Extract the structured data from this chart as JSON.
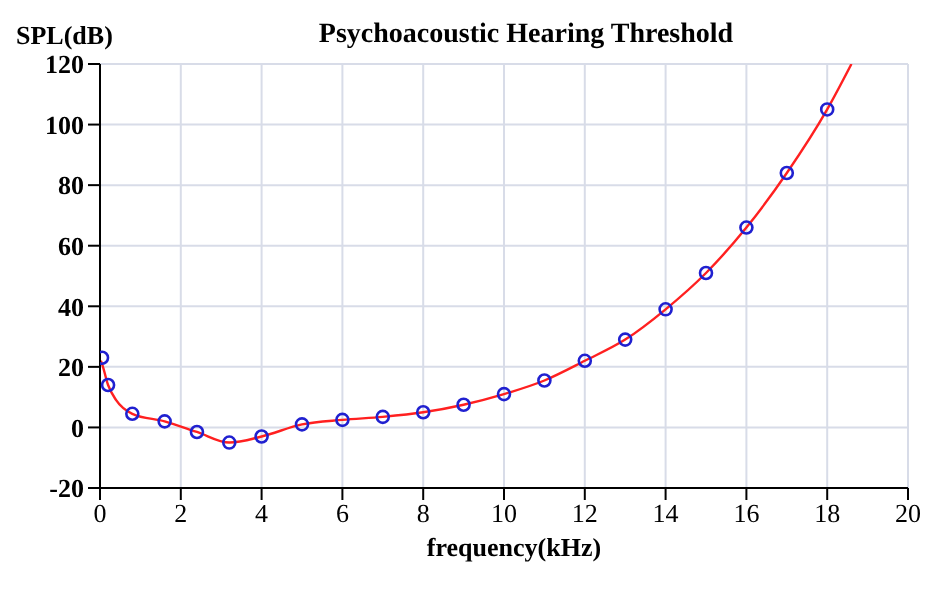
{
  "chart_data": {
    "type": "line",
    "title": "Psychoacoustic Hearing Threshold",
    "xlabel": "frequency(kHz)",
    "ylabel": "SPL(dB)",
    "xlim": [
      0,
      20
    ],
    "xticks": [
      0,
      2,
      4,
      6,
      8,
      10,
      12,
      14,
      16,
      18,
      20
    ],
    "ylim": [
      -20,
      120
    ],
    "yticks": [
      -20,
      0,
      20,
      40,
      60,
      80,
      100,
      120
    ],
    "grid": true,
    "series": [
      {
        "color": "#ff2020",
        "marker": "none",
        "x": [
          0.02,
          0.05,
          0.2,
          0.4,
          0.8,
          1.6,
          2.4,
          3.2,
          4,
          5,
          6,
          7,
          8,
          9,
          10,
          11,
          12,
          13,
          14,
          15,
          16,
          17,
          18,
          18.6
        ],
        "values": [
          22,
          21,
          14,
          9,
          4.5,
          2,
          -1.5,
          -5,
          -3,
          1,
          2.5,
          3.5,
          5,
          7.5,
          11,
          15.5,
          22,
          29,
          39,
          51,
          66,
          84,
          105,
          120
        ]
      },
      {
        "type": "scatter",
        "color": "#2020d0",
        "marker": "circle",
        "x": [
          0.05,
          0.2,
          0.8,
          1.6,
          2.4,
          3.2,
          4,
          5,
          6,
          7,
          8,
          9,
          10,
          11,
          12,
          13,
          14,
          15,
          16,
          17,
          18
        ],
        "values": [
          23,
          14,
          4.5,
          2,
          -1.5,
          -5,
          -3,
          1,
          2.5,
          3.5,
          5,
          7.5,
          11,
          15.5,
          22,
          29,
          39,
          51,
          66,
          84,
          105
        ]
      }
    ]
  }
}
